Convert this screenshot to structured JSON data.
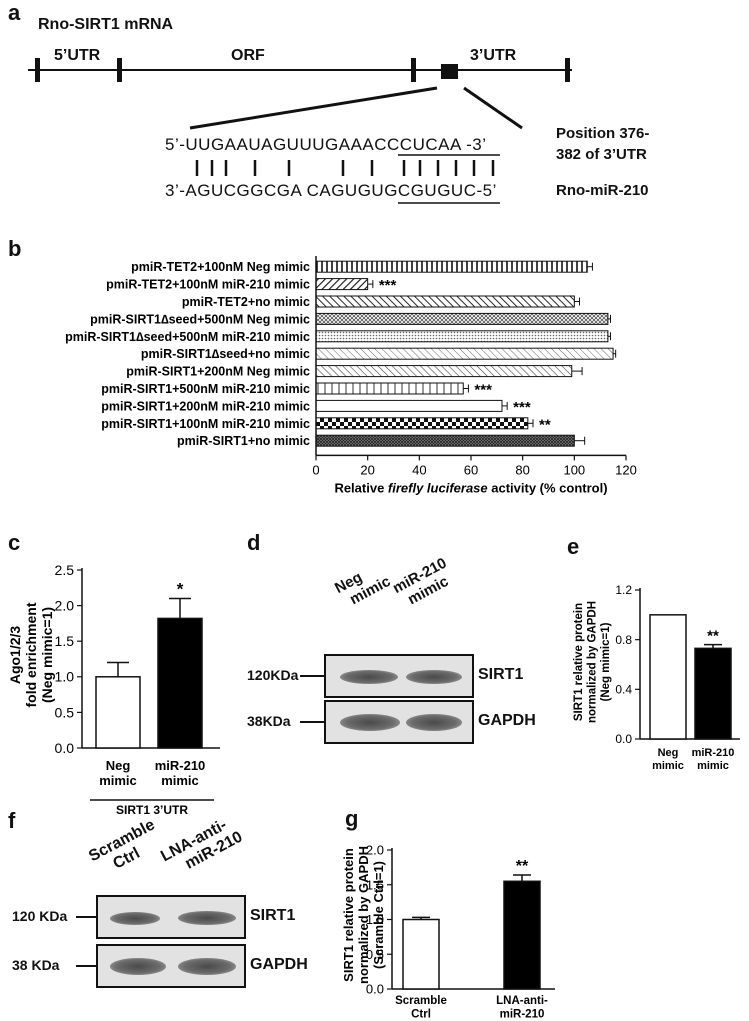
{
  "panel_a": {
    "letter": "a",
    "title": "Rno-SIRT1 mRNA",
    "regions": [
      "5’UTR",
      "ORF",
      "3’UTR"
    ],
    "mrna_seq": "5’-UUGAAUAGUUUGAAACCCUCAA -3’",
    "mirna_seq": "3’-AGUCGGCGA CAGUGUGCGUGUC-5’",
    "position_line1": "Position 376-",
    "position_line2": "382 of 3’UTR",
    "mirna_label": "Rno-miR-210"
  },
  "panel_b": {
    "letter": "b",
    "chart_data": {
      "type": "bar",
      "orientation": "horizontal",
      "categories": [
        "pmiR-TET2+100nM Neg mimic",
        "pmiR-TET2+100nM miR-210 mimic",
        "pmiR-TET2+no mimic",
        "pmiR-SIRT1∆seed+500nM Neg mimic",
        "pmiR-SIRT1∆seed+500nM miR-210 mimic",
        "pmiR-SIRT1∆seed+no mimic",
        "pmiR-SIRT1+200nM Neg mimic",
        "pmiR-SIRT1+500nM miR-210 mimic",
        "pmiR-SIRT1+200nM miR-210 mimic",
        "pmiR-SIRT1+100nM miR-210 mimic",
        "pmiR-SIRT1+no mimic"
      ],
      "values": [
        105,
        20,
        100,
        113,
        113,
        115,
        99,
        57,
        72,
        82,
        100
      ],
      "errors": [
        2,
        2,
        2,
        1,
        1,
        1,
        4,
        2,
        2,
        2,
        4
      ],
      "significance": [
        "",
        "***",
        "",
        "",
        "",
        "",
        "",
        "***",
        "***",
        "**",
        ""
      ],
      "xlim": [
        0,
        120
      ],
      "xticks": [
        0,
        20,
        40,
        60,
        80,
        100,
        120
      ],
      "xlabel_pre": "Relative ",
      "xlabel_italic": "firefly luciferase",
      "xlabel_post": " activity (% control)"
    }
  },
  "panel_c": {
    "letter": "c",
    "chart_data": {
      "type": "bar",
      "categories": [
        "Neg mimic",
        "miR-210 mimic"
      ],
      "cat_lines": [
        [
          "Neg",
          "mimic"
        ],
        [
          "miR-210",
          "mimic"
        ]
      ],
      "values": [
        1.0,
        1.82
      ],
      "errors": [
        0.2,
        0.28
      ],
      "fills": [
        "#ffffff",
        "#000000"
      ],
      "significance": [
        "",
        "*"
      ],
      "ylim": [
        0.0,
        2.5
      ],
      "yticks": [
        "0.0",
        "0.5",
        "1.0",
        "1.5",
        "2.0",
        "2.5"
      ],
      "ylabel_lines": [
        "Ago1/2/3",
        "fold enrichment",
        "(Neg mimic=1)"
      ],
      "group_label": "SIRT1 3’UTR"
    }
  },
  "panel_d": {
    "letter": "d",
    "lane_labels": [
      [
        "Neg",
        "mimic"
      ],
      [
        "miR-210",
        "mimic"
      ]
    ],
    "rows": [
      {
        "marker": "120KDa",
        "protein": "SIRT1"
      },
      {
        "marker": "38KDa",
        "protein": "GAPDH"
      }
    ]
  },
  "panel_e": {
    "letter": "e",
    "chart_data": {
      "type": "bar",
      "categories": [
        "Neg mimic",
        "miR-210 mimic"
      ],
      "cat_lines": [
        [
          "Neg",
          "mimic"
        ],
        [
          "miR-210",
          "mimic"
        ]
      ],
      "values": [
        1.0,
        0.73
      ],
      "errors": [
        0.0,
        0.03
      ],
      "fills": [
        "#ffffff",
        "#000000"
      ],
      "significance": [
        "",
        "**"
      ],
      "ylim": [
        0.0,
        1.2
      ],
      "yticks": [
        "0.0",
        "0.4",
        "0.8",
        "1.2"
      ],
      "ylabel_lines": [
        "SIRT1 relative protein",
        "normalized by GAPDH",
        "(Neg mimic=1)"
      ]
    }
  },
  "panel_f": {
    "letter": "f",
    "lane_labels": [
      [
        "Scramble",
        "Ctrl"
      ],
      [
        "LNA-anti-",
        "miR-210"
      ]
    ],
    "rows": [
      {
        "marker": "120 KDa",
        "protein": "SIRT1"
      },
      {
        "marker": "38 KDa",
        "protein": "GAPDH"
      }
    ]
  },
  "panel_g": {
    "letter": "g",
    "chart_data": {
      "type": "bar",
      "categories": [
        "Scramble Ctrl",
        "LNA-anti-miR-210"
      ],
      "cat_lines": [
        [
          "Scramble",
          "Ctrl"
        ],
        [
          "LNA-anti-",
          "miR-210"
        ]
      ],
      "values": [
        1.0,
        1.55
      ],
      "errors": [
        0.03,
        0.09
      ],
      "fills": [
        "#ffffff",
        "#000000"
      ],
      "significance": [
        "",
        "**"
      ],
      "ylim": [
        0.0,
        2.0
      ],
      "yticks": [
        "0.0",
        "0.5",
        "1.0",
        "1.5",
        "2.0"
      ],
      "ylabel_lines": [
        "SIRT1 relative protein",
        "normalized by GAPDH",
        "(Scramble Ctrl=1)"
      ]
    }
  }
}
